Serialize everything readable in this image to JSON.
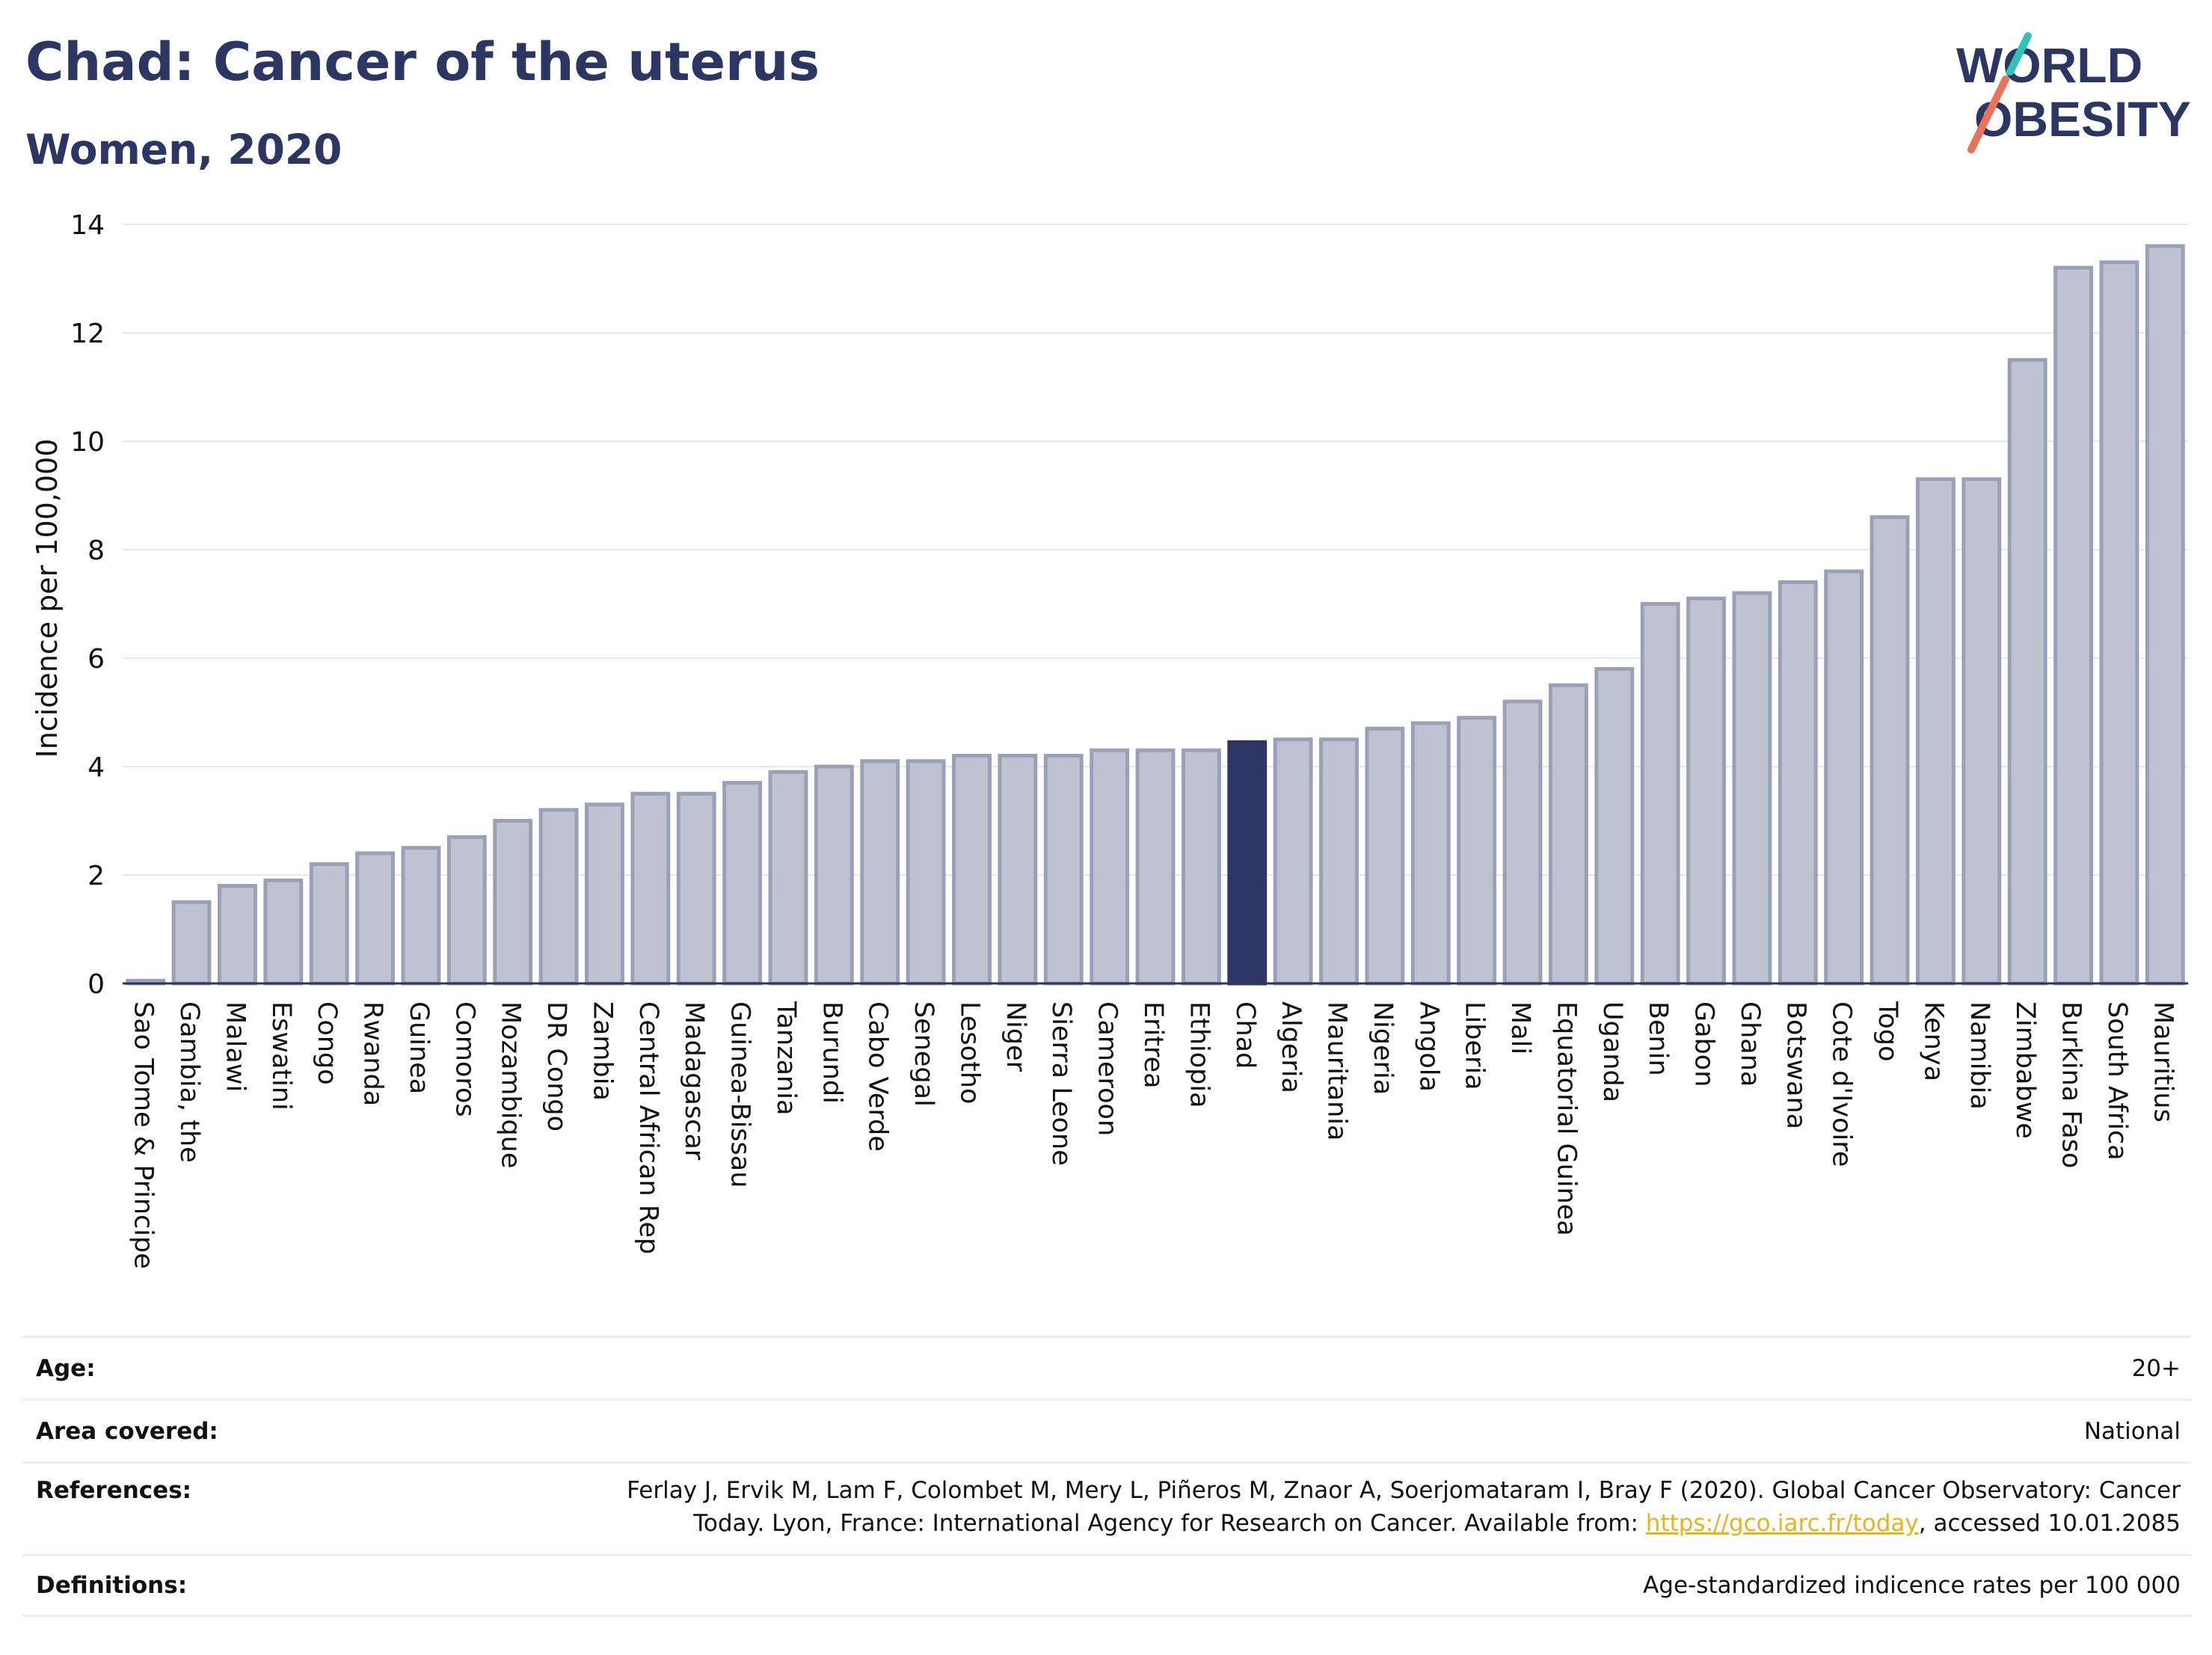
{
  "title": "Chad: Cancer of the uterus",
  "subtitle": "Women, 2020",
  "logo": {
    "line1": "WORLD",
    "line2": "OBESITY",
    "accent_colors": [
      "#2ec4b6",
      "#e8735a"
    ]
  },
  "chart_data": {
    "type": "bar",
    "ylabel": "Incidence per 100,000",
    "xlabel": "",
    "ylim": [
      0,
      14
    ],
    "yticks": [
      0,
      2,
      4,
      6,
      8,
      10,
      12,
      14
    ],
    "grid": true,
    "highlight": "Chad",
    "colors": {
      "bar": "#bfc3d1",
      "bar_border": "#9aa0b8",
      "highlight": "#2b3663"
    },
    "categories": [
      "Sao Tome & Principe",
      "Gambia, the",
      "Malawi",
      "Eswatini",
      "Congo",
      "Rwanda",
      "Guinea",
      "Comoros",
      "Mozambique",
      "DR Congo",
      "Zambia",
      "Central African Rep",
      "Madagascar",
      "Guinea-Bissau",
      "Tanzania",
      "Burundi",
      "Cabo Verde",
      "Senegal",
      "Lesotho",
      "Niger",
      "Sierra Leone",
      "Cameroon",
      "Eritrea",
      "Ethiopia",
      "Chad",
      "Algeria",
      "Mauritania",
      "Nigeria",
      "Angola",
      "Liberia",
      "Mali",
      "Equatorial Guinea",
      "Uganda",
      "Benin",
      "Gabon",
      "Ghana",
      "Botswana",
      "Cote d'Ivoire",
      "Togo",
      "Kenya",
      "Namibia",
      "Zimbabwe",
      "Burkina Faso",
      "South Africa",
      "Mauritius"
    ],
    "values": [
      0.05,
      1.5,
      1.8,
      1.9,
      2.2,
      2.4,
      2.5,
      2.7,
      3.0,
      3.2,
      3.3,
      3.5,
      3.5,
      3.7,
      3.9,
      4.0,
      4.1,
      4.1,
      4.2,
      4.2,
      4.2,
      4.3,
      4.3,
      4.3,
      4.45,
      4.5,
      4.5,
      4.7,
      4.8,
      4.9,
      5.2,
      5.5,
      5.8,
      7.0,
      7.1,
      7.2,
      7.4,
      7.6,
      8.6,
      9.3,
      9.3,
      11.5,
      13.2,
      13.3,
      13.6
    ]
  },
  "meta": {
    "age_label": "Age:",
    "age_value": "20+",
    "area_label": "Area covered:",
    "area_value": "National",
    "references_label": "References:",
    "references_text_1": "Ferlay J, Ervik M, Lam F, Colombet M, Mery L, Piñeros M, Znaor A, Soerjomataram I, Bray F (2020). Global Cancer Observatory: Cancer",
    "references_text_2": "Today. Lyon, France: International Agency for Research on Cancer. Available from: ",
    "references_link": "https://gco.iarc.fr/today",
    "references_text_3": ", accessed 10.01.2085",
    "definitions_label": "Definitions:",
    "definitions_value": "Age-standardized indicence rates per 100 000"
  }
}
